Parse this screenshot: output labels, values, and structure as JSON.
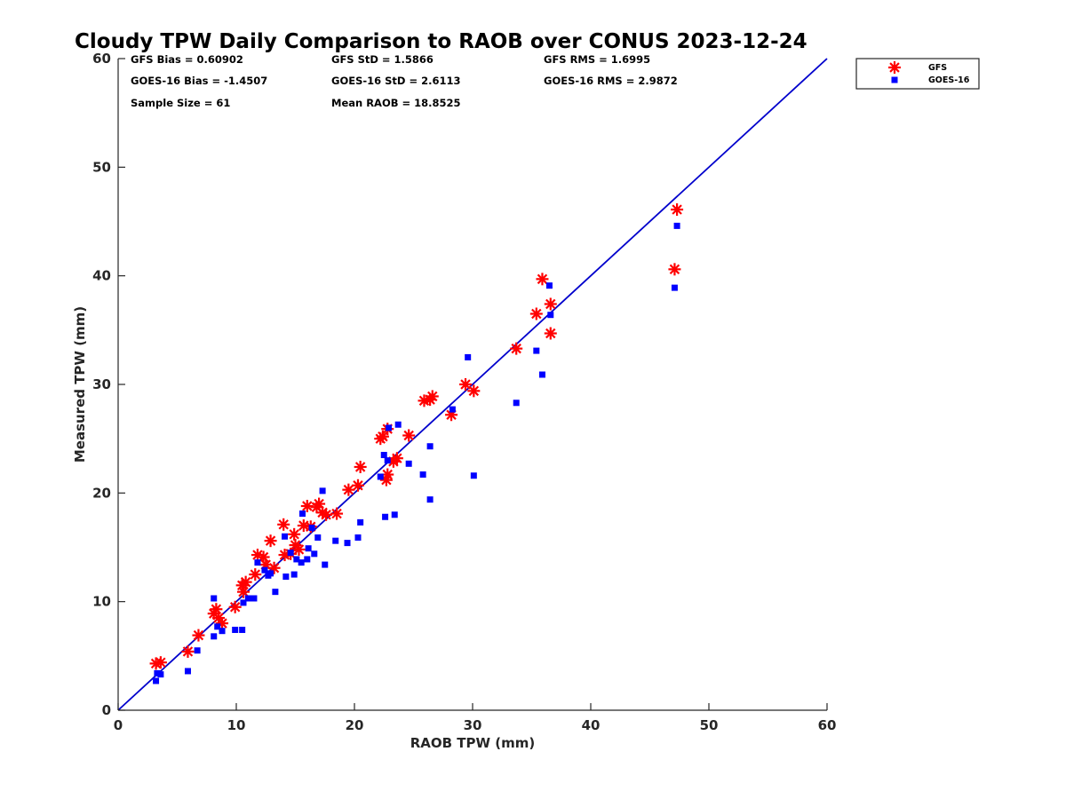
{
  "chart_data": {
    "type": "scatter",
    "title": "Cloudy TPW Daily Comparison to RAOB over CONUS 2023-12-24",
    "xlabel": "RAOB TPW (mm)",
    "ylabel": "Measured TPW (mm)",
    "xlim": [
      0,
      60
    ],
    "ylim": [
      0,
      60
    ],
    "xticks": [
      "0",
      "10",
      "20",
      "30",
      "40",
      "50",
      "60"
    ],
    "yticks": [
      "0",
      "10",
      "20",
      "30",
      "40",
      "50",
      "60"
    ],
    "grid": false,
    "legend_position": "top-right, outside plot",
    "reference_line": {
      "x": [
        0,
        60
      ],
      "y": [
        0,
        60
      ],
      "color": "#0000cc"
    },
    "stats": [
      [
        "GFS Bias = 0.60902",
        "GFS StD = 1.5866",
        "GFS RMS = 1.6995"
      ],
      [
        "GOES-16 Bias = -1.4507",
        "GOES-16 StD = 2.6113",
        "GOES-16 RMS = 2.9872"
      ],
      [
        "Sample Size = 61",
        "Mean RAOB = 18.8525",
        ""
      ]
    ],
    "series": [
      {
        "name": "GFS",
        "color": "#ff0000",
        "marker": "asterisk",
        "points": [
          [
            3.2,
            4.3
          ],
          [
            3.6,
            4.4
          ],
          [
            5.9,
            5.4
          ],
          [
            6.8,
            6.9
          ],
          [
            8.1,
            8.9
          ],
          [
            8.3,
            9.3
          ],
          [
            8.5,
            8.5
          ],
          [
            8.8,
            8.0
          ],
          [
            9.9,
            9.5
          ],
          [
            10.5,
            11.5
          ],
          [
            10.8,
            11.8
          ],
          [
            10.6,
            10.9
          ],
          [
            11.6,
            12.5
          ],
          [
            11.8,
            14.3
          ],
          [
            12.3,
            14.1
          ],
          [
            12.5,
            13.4
          ],
          [
            12.9,
            15.6
          ],
          [
            13.2,
            13.1
          ],
          [
            14.0,
            17.1
          ],
          [
            14.1,
            14.3
          ],
          [
            14.6,
            14.4
          ],
          [
            14.9,
            16.2
          ],
          [
            15.0,
            15.2
          ],
          [
            15.3,
            14.8
          ],
          [
            15.7,
            17.0
          ],
          [
            16.0,
            18.8
          ],
          [
            16.3,
            16.9
          ],
          [
            16.8,
            18.7
          ],
          [
            17.0,
            19.0
          ],
          [
            17.3,
            18.2
          ],
          [
            17.6,
            18.0
          ],
          [
            18.5,
            18.1
          ],
          [
            19.5,
            20.3
          ],
          [
            20.3,
            20.7
          ],
          [
            20.5,
            22.4
          ],
          [
            22.2,
            25.0
          ],
          [
            22.4,
            25.2
          ],
          [
            22.7,
            21.2
          ],
          [
            22.8,
            21.7
          ],
          [
            22.8,
            25.9
          ],
          [
            23.3,
            22.9
          ],
          [
            23.6,
            23.2
          ],
          [
            24.6,
            25.3
          ],
          [
            25.9,
            28.5
          ],
          [
            26.4,
            28.6
          ],
          [
            26.6,
            28.9
          ],
          [
            28.2,
            27.2
          ],
          [
            29.4,
            30.0
          ],
          [
            30.1,
            29.4
          ],
          [
            33.7,
            33.3
          ],
          [
            35.4,
            36.5
          ],
          [
            35.9,
            39.7
          ],
          [
            36.6,
            37.4
          ],
          [
            36.6,
            34.7
          ],
          [
            47.1,
            40.6
          ],
          [
            47.3,
            46.1
          ]
        ]
      },
      {
        "name": "GOES-16",
        "color": "#0000ff",
        "marker": "square",
        "points": [
          [
            3.2,
            2.7
          ],
          [
            3.3,
            3.4
          ],
          [
            3.6,
            3.3
          ],
          [
            5.9,
            3.6
          ],
          [
            6.7,
            5.5
          ],
          [
            8.1,
            6.8
          ],
          [
            8.1,
            10.3
          ],
          [
            8.4,
            7.7
          ],
          [
            8.8,
            7.3
          ],
          [
            9.9,
            7.4
          ],
          [
            10.5,
            7.4
          ],
          [
            10.6,
            9.9
          ],
          [
            11.0,
            10.3
          ],
          [
            11.5,
            10.3
          ],
          [
            11.8,
            13.6
          ],
          [
            12.4,
            12.9
          ],
          [
            12.7,
            12.4
          ],
          [
            12.9,
            12.6
          ],
          [
            13.3,
            10.9
          ],
          [
            14.1,
            16.0
          ],
          [
            14.2,
            12.3
          ],
          [
            14.6,
            14.5
          ],
          [
            14.9,
            12.5
          ],
          [
            15.1,
            13.9
          ],
          [
            15.5,
            13.6
          ],
          [
            15.6,
            18.1
          ],
          [
            16.0,
            13.9
          ],
          [
            16.1,
            14.9
          ],
          [
            16.4,
            16.8
          ],
          [
            16.6,
            14.4
          ],
          [
            16.9,
            15.9
          ],
          [
            17.3,
            20.2
          ],
          [
            17.5,
            13.4
          ],
          [
            18.4,
            15.6
          ],
          [
            19.4,
            15.4
          ],
          [
            20.3,
            15.9
          ],
          [
            20.5,
            17.3
          ],
          [
            22.2,
            21.5
          ],
          [
            22.5,
            23.5
          ],
          [
            22.6,
            17.8
          ],
          [
            22.8,
            23.0
          ],
          [
            22.9,
            26.0
          ],
          [
            23.4,
            18.0
          ],
          [
            23.7,
            26.3
          ],
          [
            24.6,
            22.7
          ],
          [
            25.8,
            21.7
          ],
          [
            26.4,
            19.4
          ],
          [
            26.4,
            24.3
          ],
          [
            28.3,
            27.7
          ],
          [
            29.6,
            32.5
          ],
          [
            30.1,
            21.6
          ],
          [
            33.7,
            28.3
          ],
          [
            35.4,
            33.1
          ],
          [
            35.9,
            30.9
          ],
          [
            36.5,
            39.1
          ],
          [
            36.6,
            36.4
          ],
          [
            47.1,
            38.9
          ],
          [
            47.3,
            44.6
          ]
        ]
      }
    ]
  }
}
